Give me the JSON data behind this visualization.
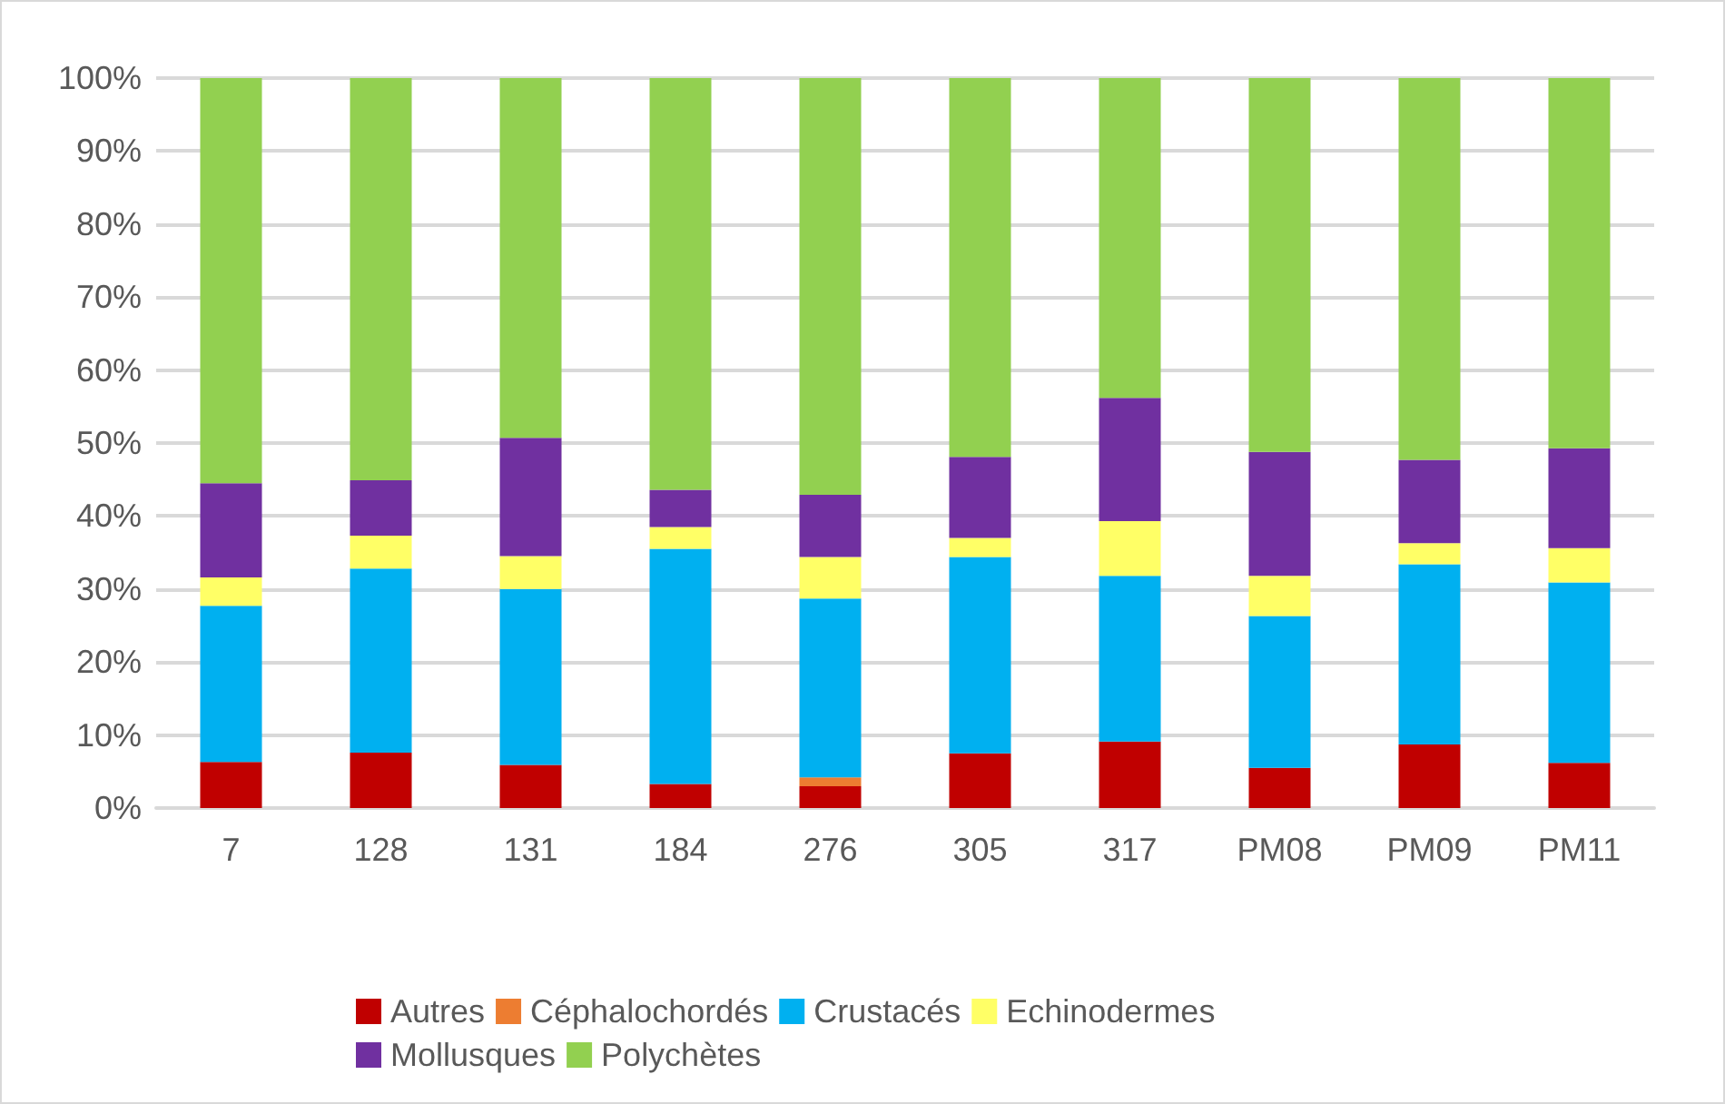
{
  "chart_data": {
    "type": "bar",
    "stacked": true,
    "categories": [
      "7",
      "128",
      "131",
      "184",
      "276",
      "305",
      "317",
      "PM08",
      "PM09",
      "PM11"
    ],
    "series": [
      {
        "name": "Autres",
        "color": "#c00000",
        "values": [
          6.3,
          7.6,
          5.9,
          3.3,
          3.0,
          7.5,
          9.1,
          5.5,
          8.7,
          6.2
        ]
      },
      {
        "name": "Céphalochordés",
        "color": "#ed7d31",
        "values": [
          0,
          0,
          0,
          0,
          1.2,
          0,
          0,
          0,
          0,
          0
        ]
      },
      {
        "name": "Crustacés",
        "color": "#00b0f0",
        "values": [
          21.4,
          25.2,
          24.1,
          32.2,
          24.5,
          26.9,
          22.7,
          20.8,
          24.7,
          24.7
        ]
      },
      {
        "name": "Echinodermes",
        "color": "#ffff66",
        "values": [
          3.9,
          4.5,
          4.5,
          3.0,
          5.7,
          2.6,
          7.5,
          5.5,
          2.9,
          4.7
        ]
      },
      {
        "name": "Mollusques",
        "color": "#7030a0",
        "values": [
          12.9,
          7.6,
          16.2,
          5.1,
          8.5,
          11.1,
          16.9,
          17.0,
          11.4,
          13.7
        ]
      },
      {
        "name": "Polychètes",
        "color": "#92d050",
        "values": [
          55.5,
          55.1,
          49.3,
          56.4,
          57.1,
          51.9,
          43.8,
          51.2,
          52.3,
          50.7
        ]
      }
    ],
    "ylim": [
      0,
      100
    ],
    "yticks": [
      {
        "value": 0,
        "label": "0%"
      },
      {
        "value": 10,
        "label": "10%"
      },
      {
        "value": 20,
        "label": "20%"
      },
      {
        "value": 30,
        "label": "30%"
      },
      {
        "value": 40,
        "label": "40%"
      },
      {
        "value": 50,
        "label": "50%"
      },
      {
        "value": 60,
        "label": "60%"
      },
      {
        "value": 70,
        "label": "70%"
      },
      {
        "value": 80,
        "label": "80%"
      },
      {
        "value": 90,
        "label": "90%"
      },
      {
        "value": 100,
        "label": "100%"
      }
    ],
    "grid": "y",
    "legend": "bottom"
  }
}
